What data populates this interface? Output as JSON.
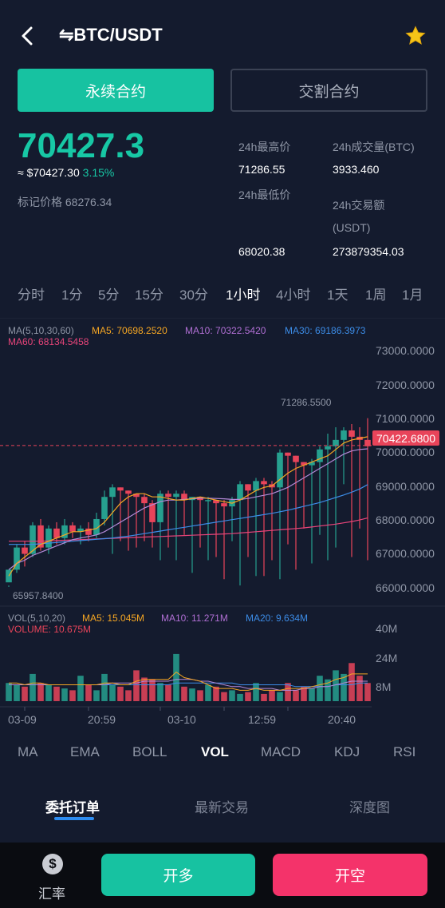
{
  "header": {
    "title": "⇋BTC/USDT"
  },
  "tabs": [
    {
      "label": "永续合约",
      "active": true
    },
    {
      "label": "交割合约",
      "active": false
    }
  ],
  "ticker": {
    "price": "70427.3",
    "fiat": "≈ $70427.30",
    "change": "3.15%",
    "mark_price": "标记价格 68276.34",
    "stats": {
      "high_label": "24h最高价",
      "high": "71286.55",
      "low_label": "24h最低价",
      "low": "68020.38",
      "volume_label": "24h成交量(BTC)",
      "volume": "3933.460",
      "amount_label": "24h交易额",
      "amount_unit": "(USDT)",
      "amount": "273879354.03"
    }
  },
  "periods": [
    "分时",
    "1分",
    "5分",
    "15分",
    "30分",
    "1小时",
    "4小时",
    "1天",
    "1周",
    "1月"
  ],
  "active_period": "1小时",
  "chart_data": {
    "type": "candlestick",
    "ma_legend": {
      "label": "MA(5,10,30,60)",
      "ma5": "MA5: 70698.2520",
      "ma10": "MA10: 70322.5420",
      "ma30": "MA30: 69186.3973",
      "ma60": "MA60: 68134.5458"
    },
    "y_ticks": [
      "73000.0000",
      "72000.0000",
      "71000.0000",
      "70000.0000",
      "69000.0000",
      "68000.0000",
      "67000.0000",
      "66000.0000"
    ],
    "ylim": [
      65500,
      73700
    ],
    "current_price": "70422.6800",
    "current_value": 70422.68,
    "max_label": "71286.5500",
    "min_label": "65957.8400",
    "candles": [
      [
        66100,
        66500,
        66000,
        65958
      ],
      [
        66500,
        67200,
        67300,
        66400
      ],
      [
        67200,
        67000,
        67400,
        66600
      ],
      [
        67000,
        67900,
        68000,
        66900
      ],
      [
        67900,
        67200,
        68100,
        67100
      ],
      [
        67200,
        67800,
        67900,
        67000
      ],
      [
        67800,
        67500,
        68000,
        67300
      ],
      [
        67500,
        67900,
        68100,
        67300
      ],
      [
        67900,
        67700,
        68000,
        67500
      ],
      [
        67700,
        67800,
        67900,
        67300
      ],
      [
        67800,
        67600,
        68000,
        67400
      ],
      [
        67600,
        68100,
        68300,
        67500
      ],
      [
        68100,
        68800,
        69000,
        67900
      ],
      [
        68800,
        69100,
        69200,
        67000
      ],
      [
        69100,
        69000,
        69100,
        67400
      ],
      [
        69000,
        68900,
        69000,
        67100
      ],
      [
        68900,
        68800,
        68900,
        67200
      ],
      [
        68800,
        68600,
        68900,
        67400
      ],
      [
        68600,
        68000,
        68700,
        67200
      ],
      [
        68000,
        68900,
        69000,
        66800
      ],
      [
        68900,
        68800,
        69000,
        67200
      ],
      [
        68800,
        68900,
        69000,
        66800
      ],
      [
        68900,
        68700,
        69000,
        67600
      ],
      [
        68700,
        68800,
        68800,
        66400
      ],
      [
        68800,
        68700,
        68800,
        67200
      ],
      [
        68700,
        68700,
        68800,
        66800
      ],
      [
        68700,
        68600,
        68700,
        66900
      ],
      [
        68600,
        68500,
        68700,
        66200
      ],
      [
        68500,
        68700,
        68800,
        67400
      ],
      [
        68700,
        69200,
        69300,
        66000
      ],
      [
        69200,
        69000,
        69200,
        66900
      ],
      [
        69000,
        69300,
        69400,
        66300
      ],
      [
        69300,
        69200,
        69400,
        66300
      ],
      [
        69200,
        69100,
        69300,
        66800
      ],
      [
        69100,
        70200,
        70300,
        66200
      ],
      [
        70200,
        70100,
        70200,
        67300
      ],
      [
        70100,
        69900,
        70100,
        66500
      ],
      [
        69900,
        69800,
        69900,
        67800
      ],
      [
        69800,
        69900,
        70000,
        66700
      ],
      [
        69900,
        70300,
        70400,
        67600
      ],
      [
        70300,
        70400,
        70800,
        66800
      ],
      [
        70400,
        70600,
        71000,
        67200
      ],
      [
        70600,
        70900,
        71000,
        69200
      ],
      [
        70900,
        70700,
        71100,
        66900
      ],
      [
        70700,
        70600,
        71000,
        67800
      ],
      [
        70600,
        70400,
        71287,
        66800
      ]
    ],
    "ma5": [
      66300,
      66700,
      66900,
      67100,
      67300,
      67400,
      67500,
      67600,
      67700,
      67700,
      67750,
      67800,
      68000,
      68300,
      68600,
      68800,
      68900,
      68900,
      68800,
      68800,
      68750,
      68700,
      68700,
      68750,
      68800,
      68750,
      68700,
      68650,
      68600,
      68700,
      68850,
      69000,
      69100,
      69150,
      69350,
      69550,
      69700,
      69800,
      69900,
      70000,
      70100,
      70300,
      70500,
      70600,
      70650,
      70700
    ],
    "ma10": [
      66500,
      66700,
      66800,
      66950,
      67050,
      67150,
      67250,
      67350,
      67450,
      67500,
      67550,
      67600,
      67700,
      67850,
      68000,
      68150,
      68300,
      68450,
      68550,
      68650,
      68700,
      68700,
      68720,
      68740,
      68760,
      68760,
      68750,
      68740,
      68720,
      68720,
      68750,
      68800,
      68850,
      68900,
      69000,
      69100,
      69250,
      69400,
      69550,
      69700,
      69850,
      70000,
      70150,
      70250,
      70300,
      70320
    ],
    "ma30": [
      67300,
      67300,
      67300,
      67300,
      67320,
      67340,
      67360,
      67380,
      67400,
      67420,
      67440,
      67460,
      67480,
      67500,
      67530,
      67560,
      67600,
      67640,
      67680,
      67720,
      67760,
      67800,
      67840,
      67880,
      67920,
      67960,
      68000,
      68040,
      68080,
      68120,
      68160,
      68200,
      68240,
      68280,
      68330,
      68380,
      68440,
      68500,
      68560,
      68620,
      68700,
      68780,
      68860,
      68950,
      69050,
      69190
    ],
    "ma60": [
      67400,
      67400,
      67400,
      67400,
      67400,
      67410,
      67420,
      67430,
      67440,
      67450,
      67460,
      67470,
      67480,
      67490,
      67500,
      67510,
      67520,
      67530,
      67540,
      67550,
      67560,
      67570,
      67580,
      67590,
      67600,
      67610,
      67620,
      67630,
      67640,
      67660,
      67680,
      67700,
      67720,
      67740,
      67760,
      67780,
      67800,
      67820,
      67850,
      67880,
      67910,
      67940,
      67980,
      68020,
      68070,
      68135
    ],
    "vol_legend": {
      "label": "VOL(5,10,20)",
      "ma5": "MA5: 15.045M",
      "ma10": "MA10: 11.271M",
      "ma20": "MA20: 9.634M",
      "volume": "VOLUME: 10.675M"
    },
    "vol_ticks": [
      "40M",
      "24M",
      "8M"
    ],
    "vol_ylim": [
      0,
      44
    ],
    "volumes": [
      10,
      9,
      8,
      15,
      10,
      9,
      8,
      7,
      6,
      14,
      9,
      6,
      15,
      9,
      8,
      6,
      17,
      13,
      12,
      10,
      9,
      26,
      8,
      7,
      6,
      9,
      8,
      5,
      6,
      4,
      5,
      10,
      4,
      6,
      5,
      10,
      6,
      8,
      7,
      14,
      12,
      17,
      15,
      21,
      14,
      10
    ],
    "vol_ma5": [
      10,
      10,
      9,
      10,
      10,
      9,
      9,
      9,
      9,
      9,
      9,
      9,
      10,
      10,
      9,
      9,
      11,
      12,
      12,
      12,
      12,
      16,
      13,
      12,
      11,
      9,
      7,
      7,
      7,
      6,
      6,
      7,
      6,
      6,
      6,
      7,
      7,
      7,
      8,
      9,
      10,
      12,
      13,
      15,
      15,
      15
    ],
    "vol_ma10": [
      9,
      9,
      9,
      9,
      9,
      9,
      9,
      9,
      9,
      9,
      9,
      9,
      9,
      10,
      10,
      10,
      10,
      11,
      11,
      11,
      11,
      12,
      12,
      12,
      11,
      11,
      10,
      9,
      8,
      8,
      7,
      7,
      7,
      7,
      6,
      6,
      6,
      7,
      7,
      8,
      8,
      9,
      10,
      11,
      11,
      11
    ],
    "vol_ma20": [
      9,
      9,
      9,
      9,
      9,
      9,
      9,
      9,
      9,
      9,
      9,
      9,
      9,
      9,
      9,
      9,
      9,
      9,
      9,
      9,
      9,
      10,
      10,
      10,
      10,
      10,
      10,
      10,
      10,
      9,
      9,
      9,
      9,
      9,
      9,
      9,
      8,
      8,
      8,
      8,
      8,
      9,
      9,
      9,
      10,
      10
    ],
    "x_ticks": [
      "03-09",
      "20:59",
      "03-10",
      "12:59",
      "20:40"
    ],
    "x_tick_index": [
      2,
      10,
      19,
      27,
      35
    ]
  },
  "indicators": [
    "MA",
    "EMA",
    "BOLL",
    "VOL",
    "MACD",
    "KDJ",
    "RSI"
  ],
  "active_indicator": "VOL",
  "order_tabs": [
    "委托订单",
    "最新交易",
    "深度图"
  ],
  "bottom": {
    "rate": "汇率",
    "long": "开多",
    "short": "开空"
  },
  "colors": {
    "up": "#26a08f",
    "down": "#e8445a",
    "ma5": "#f5a623",
    "ma10": "#9b59b6",
    "ma30": "#3c8ce7",
    "ma60": "#e8447a"
  }
}
